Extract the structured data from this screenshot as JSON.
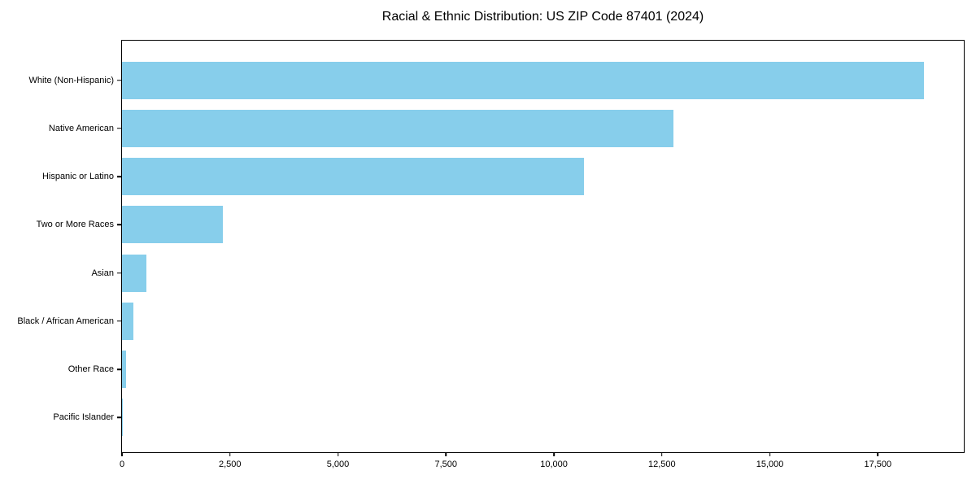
{
  "chart_data": {
    "type": "bar",
    "orientation": "horizontal",
    "title": "Racial & Ethnic Distribution: US ZIP Code 87401 (2024)",
    "categories": [
      "White (Non-Hispanic)",
      "Native American",
      "Hispanic or Latino",
      "Two or More Races",
      "Asian",
      "Black / African American",
      "Other Race",
      "Pacific Islander"
    ],
    "values": [
      18560,
      12770,
      10700,
      2340,
      560,
      260,
      95,
      10
    ],
    "xlabel": "",
    "ylabel": "",
    "xlim": [
      0,
      19490
    ],
    "xticks": [
      0,
      2500,
      5000,
      7500,
      10000,
      12500,
      15000,
      17500
    ],
    "xtick_labels": [
      "0",
      "2,500",
      "5,000",
      "7,500",
      "10,000",
      "12,500",
      "15,000",
      "17,500"
    ],
    "bar_color": "#87CEEB",
    "axis_color": "#000000",
    "grid": false,
    "legend": null
  }
}
